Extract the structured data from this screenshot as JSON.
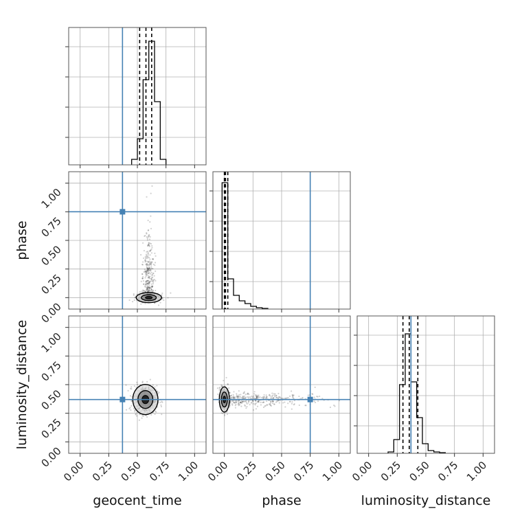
{
  "chart_data": {
    "type": "corner",
    "parameters": [
      "geocent_time",
      "phase",
      "luminosity_distance"
    ],
    "axis_range": [
      -0.1,
      1.1
    ],
    "tick_values": [
      0.0,
      0.25,
      0.5,
      0.75,
      1.0
    ],
    "tick_labels": [
      "0.00",
      "0.25",
      "0.50",
      "0.75",
      "1.00"
    ],
    "grid": true,
    "truths": {
      "geocent_time": 0.37,
      "phase": 0.75,
      "luminosity_distance": 0.37
    },
    "truth_color": "#4682b4",
    "histograms": {
      "geocent_time": {
        "bin_edges": [
          0.45,
          0.5,
          0.55,
          0.6,
          0.65,
          0.7,
          0.75
        ],
        "counts": [
          0.04,
          0.19,
          0.62,
          0.9,
          0.46,
          0.04
        ],
        "quantiles": [
          0.52,
          0.575,
          0.625
        ]
      },
      "phase": {
        "bin_edges": [
          -0.02,
          0.03,
          0.08,
          0.13,
          0.18,
          0.23,
          0.28,
          0.33,
          0.38
        ],
        "counts": [
          0.92,
          0.22,
          0.1,
          0.06,
          0.04,
          0.02,
          0.01,
          0.005
        ],
        "quantiles": [
          0.0,
          0.01,
          0.03
        ]
      },
      "luminosity_distance": {
        "bin_edges": [
          0.17,
          0.22,
          0.27,
          0.32,
          0.37,
          0.42,
          0.47,
          0.52,
          0.57,
          0.62,
          0.67
        ],
        "counts": [
          0.01,
          0.1,
          0.5,
          0.87,
          0.52,
          0.26,
          0.07,
          0.02,
          0.01,
          0.005
        ],
        "quantiles": [
          0.3,
          0.355,
          0.43
        ]
      }
    },
    "scatter_2d": [
      {
        "x": "geocent_time",
        "y": "phase",
        "center": [
          0.6,
          0.0
        ],
        "spread": [
          0.05,
          0.02
        ],
        "tail": "y-up",
        "points": 800
      },
      {
        "x": "geocent_time",
        "y": "luminosity_distance",
        "center": [
          0.57,
          0.37
        ],
        "spread": [
          0.05,
          0.06
        ],
        "points": 700
      },
      {
        "x": "phase",
        "y": "luminosity_distance",
        "center": [
          0.0,
          0.37
        ],
        "spread": [
          0.02,
          0.05
        ],
        "tail": "x-right",
        "points": 800
      }
    ]
  }
}
